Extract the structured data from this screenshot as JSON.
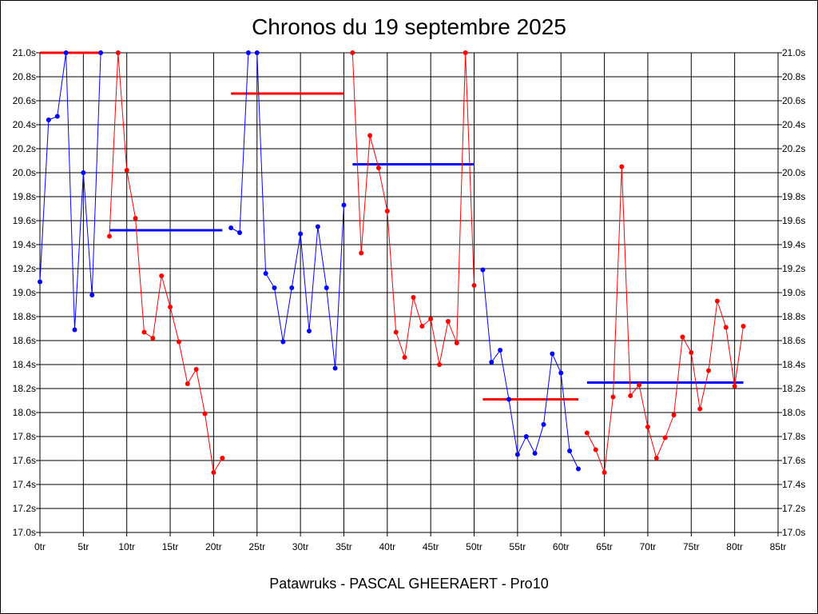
{
  "chart_data": {
    "type": "line",
    "title": "Chronos du 19 septembre 2025",
    "footer": "Patawruks - PASCAL GHEERAERT - Pro10",
    "x_unit": "tr",
    "y_unit": "s",
    "xlim": [
      0,
      85
    ],
    "ylim": [
      17.0,
      21.0
    ],
    "x_ticks": [
      "0tr",
      "5tr",
      "10tr",
      "15tr",
      "20tr",
      "25tr",
      "30tr",
      "35tr",
      "40tr",
      "45tr",
      "50tr",
      "55tr",
      "60tr",
      "65tr",
      "70tr",
      "75tr",
      "80tr",
      "85tr"
    ],
    "y_ticks": [
      "17.0s",
      "17.2s",
      "17.4s",
      "17.6s",
      "17.8s",
      "18.0s",
      "18.2s",
      "18.4s",
      "18.6s",
      "18.8s",
      "19.0s",
      "19.2s",
      "19.4s",
      "19.6s",
      "19.8s",
      "20.0s",
      "20.2s",
      "20.4s",
      "20.6s",
      "20.8s",
      "21.0s"
    ],
    "grid": true,
    "colors": {
      "blue": "#0000ff",
      "red": "#ff0000",
      "grid": "#000000"
    },
    "series": [
      {
        "color": "blue",
        "x": [
          0,
          1,
          2,
          3,
          4,
          5,
          6,
          7
        ],
        "y": [
          19.09,
          20.44,
          20.47,
          21.0,
          18.69,
          20.0,
          18.98,
          21.0
        ]
      },
      {
        "color": "red",
        "x": [
          8,
          9,
          10,
          11,
          12,
          13,
          14,
          15,
          16,
          17,
          18,
          19,
          20,
          21
        ],
        "y": [
          19.47,
          21.0,
          20.02,
          19.62,
          18.67,
          18.62,
          19.14,
          18.88,
          18.59,
          18.24,
          18.36,
          17.99,
          17.5,
          17.62
        ]
      },
      {
        "color": "blue",
        "x": [
          22,
          23,
          24,
          25,
          26,
          27,
          28,
          29,
          30,
          31,
          32,
          33,
          34,
          35
        ],
        "y": [
          19.54,
          19.5,
          21.0,
          21.0,
          19.16,
          19.04,
          18.59,
          19.04,
          19.49,
          18.68,
          19.55,
          19.04,
          18.37,
          19.73
        ]
      },
      {
        "color": "red",
        "x": [
          36,
          37,
          38,
          39,
          40,
          41,
          42,
          43,
          44,
          45,
          46,
          47,
          48,
          49,
          50
        ],
        "y": [
          21.0,
          19.33,
          20.31,
          20.04,
          19.68,
          18.67,
          18.46,
          18.96,
          18.72,
          18.78,
          18.4,
          18.76,
          18.58,
          21.0,
          19.06
        ]
      },
      {
        "color": "blue",
        "x": [
          51,
          52,
          53,
          54,
          55,
          56,
          57,
          58,
          59,
          60,
          61,
          62
        ],
        "y": [
          19.19,
          18.42,
          18.52,
          18.11,
          17.65,
          17.8,
          17.66,
          17.9,
          18.49,
          18.33,
          17.68,
          17.53
        ]
      },
      {
        "color": "red",
        "x": [
          63,
          64,
          65,
          66,
          67,
          68,
          69,
          70,
          71,
          72,
          73,
          74,
          75,
          76,
          77,
          78,
          79,
          80,
          81
        ],
        "y": [
          17.83,
          17.69,
          17.5,
          18.13,
          20.05,
          18.14,
          18.23,
          17.88,
          17.62,
          17.79,
          17.98,
          18.63,
          18.5,
          18.03,
          18.35,
          18.93,
          18.71,
          18.22,
          18.72
        ]
      }
    ],
    "averages": [
      {
        "color": "red",
        "x": [
          0,
          7
        ],
        "y": 21.0
      },
      {
        "color": "blue",
        "x": [
          8,
          21
        ],
        "y": 19.52
      },
      {
        "color": "red",
        "x": [
          22,
          35
        ],
        "y": 20.66
      },
      {
        "color": "blue",
        "x": [
          36,
          50
        ],
        "y": 20.07
      },
      {
        "color": "red",
        "x": [
          51,
          62
        ],
        "y": 18.11
      },
      {
        "color": "blue",
        "x": [
          63,
          81
        ],
        "y": 18.25
      }
    ]
  }
}
